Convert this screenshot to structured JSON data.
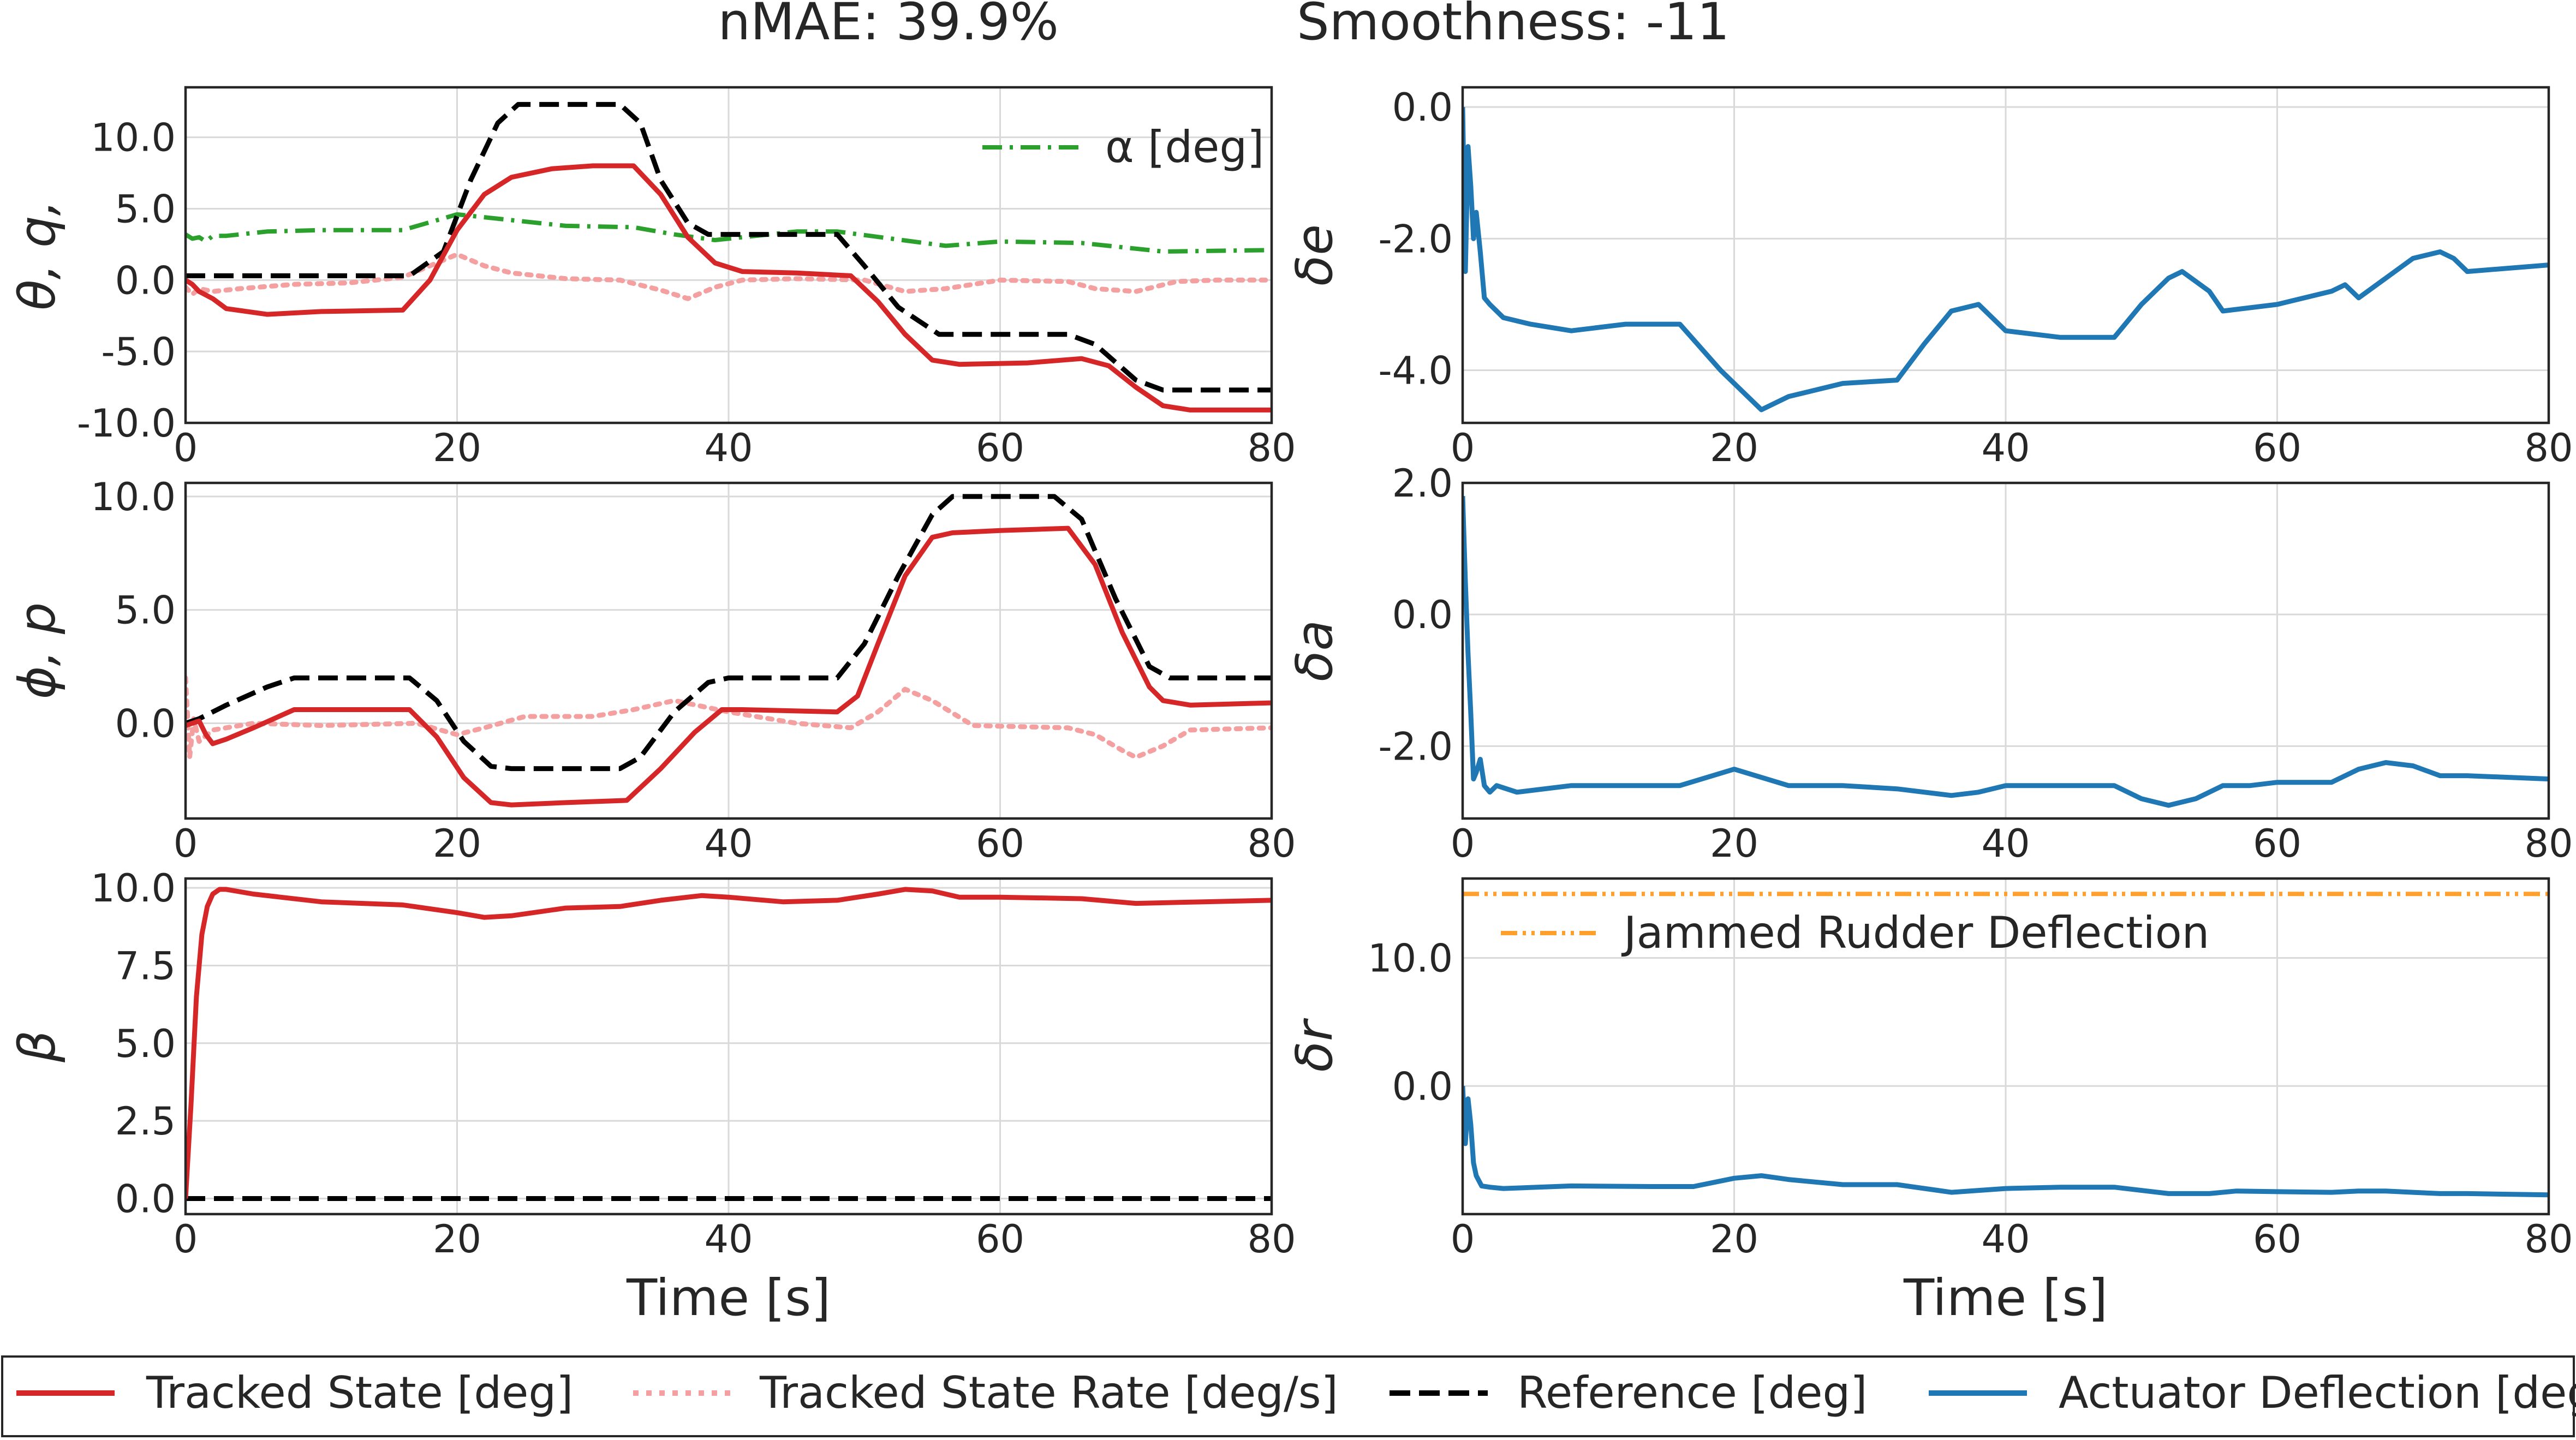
{
  "title": {
    "nmae": "nMAE: 39.9%",
    "smoothness": "Smoothness: -11"
  },
  "colors": {
    "tracked": "#d62728",
    "rate": "#f4a0a0",
    "reference": "#000000",
    "actuator": "#1f77b4",
    "alpha": "#2ca02c",
    "jammed": "#ff9f2e",
    "grid": "#d9d9d9"
  },
  "legend": {
    "items": [
      {
        "label": "Tracked State [deg]",
        "style": "solid",
        "color": "#d62728"
      },
      {
        "label": "Tracked State Rate [deg/s]",
        "style": "dotted",
        "color": "#f4a0a0"
      },
      {
        "label": "Reference [deg]",
        "style": "dashed",
        "color": "#000000"
      },
      {
        "label": "Actuator Deflection [deg]",
        "style": "solid",
        "color": "#1f77b4"
      }
    ]
  },
  "chart_data": [
    {
      "type": "line",
      "id": "theta",
      "ylabel": "θ, q,",
      "xlim": [
        0,
        80
      ],
      "ylim": [
        -10,
        13.5
      ],
      "xticks": [
        0,
        20,
        40,
        60,
        80
      ],
      "yticks": [
        -10,
        -5,
        0,
        5,
        10
      ],
      "ytick_labels": [
        "-10.0",
        "-5.0",
        "0.0",
        "5.0",
        "10.0"
      ],
      "legend_position": "top-right",
      "legend": [
        {
          "label": "α [deg]",
          "style": "dashdot",
          "color": "#2ca02c"
        }
      ],
      "series": [
        {
          "name": "α [deg]",
          "style": "dashdot",
          "color": "#2ca02c",
          "x": [
            0,
            0.5,
            1,
            1.5,
            2,
            3,
            6,
            10,
            16,
            20,
            24,
            28,
            33,
            36,
            39,
            42,
            45,
            48,
            52,
            56,
            60,
            66,
            72,
            80
          ],
          "y": [
            3.2,
            2.9,
            3.0,
            2.7,
            3.1,
            3.1,
            3.4,
            3.5,
            3.5,
            4.6,
            4.2,
            3.8,
            3.7,
            3.2,
            2.8,
            3.1,
            3.4,
            3.4,
            2.9,
            2.4,
            2.7,
            2.6,
            2.0,
            2.1
          ]
        },
        {
          "name": "Tracked State Rate [deg/s]",
          "style": "dotted",
          "color": "#f4a0a0",
          "x": [
            0,
            0.5,
            1,
            2,
            4,
            8,
            12,
            16,
            18,
            20,
            22,
            24,
            28,
            32,
            35,
            37,
            39,
            41,
            45,
            50,
            53,
            56,
            60,
            65,
            67,
            70,
            73,
            76,
            80
          ],
          "y": [
            -0.5,
            -1.0,
            -0.6,
            -0.8,
            -0.6,
            -0.3,
            -0.2,
            0.2,
            1.0,
            1.8,
            1.0,
            0.5,
            0.1,
            0.0,
            -0.7,
            -1.3,
            -0.5,
            0.0,
            0.1,
            0.0,
            -0.8,
            -0.6,
            0.0,
            -0.1,
            -0.6,
            -0.8,
            -0.1,
            0.0,
            0.0
          ]
        },
        {
          "name": "Reference [deg]",
          "style": "dashed",
          "color": "#000000",
          "x": [
            0,
            16.5,
            19,
            21,
            23,
            24.5,
            32,
            33.5,
            35,
            37,
            38.5,
            40,
            48,
            50,
            52.5,
            55.5,
            65,
            67,
            70,
            72,
            80
          ],
          "y": [
            0.3,
            0.3,
            2.0,
            7.0,
            11.0,
            12.3,
            12.3,
            11.0,
            7.0,
            4.0,
            3.2,
            3.2,
            3.2,
            1.0,
            -1.9,
            -3.8,
            -3.8,
            -4.5,
            -7.0,
            -7.7,
            -7.7
          ]
        },
        {
          "name": "Tracked State [deg]",
          "style": "solid",
          "color": "#d62728",
          "x": [
            0,
            0.5,
            1,
            2,
            3,
            6,
            10,
            16,
            18,
            20,
            22,
            24,
            27,
            30,
            33,
            35,
            37,
            39,
            41,
            45,
            49,
            51,
            53,
            55,
            57,
            62,
            66,
            68,
            70,
            72,
            74,
            80
          ],
          "y": [
            0.0,
            -0.3,
            -0.8,
            -1.3,
            -2.0,
            -2.4,
            -2.2,
            -2.1,
            0.0,
            3.5,
            6.0,
            7.2,
            7.8,
            8.0,
            8.0,
            6.0,
            3.0,
            1.2,
            0.6,
            0.5,
            0.3,
            -1.5,
            -3.8,
            -5.6,
            -5.9,
            -5.8,
            -5.5,
            -6.0,
            -7.5,
            -8.8,
            -9.1,
            -9.1
          ]
        }
      ]
    },
    {
      "type": "line",
      "id": "delta_e",
      "ylabel": "δe",
      "xlim": [
        0,
        80
      ],
      "ylim": [
        -4.8,
        0.3
      ],
      "xticks": [
        0,
        20,
        40,
        60,
        80
      ],
      "yticks": [
        -4,
        -2,
        0
      ],
      "ytick_labels": [
        "-4.0",
        "-2.0",
        "0.0"
      ],
      "series": [
        {
          "name": "Actuator Deflection [deg]",
          "style": "solid",
          "color": "#1f77b4",
          "x": [
            0,
            0.2,
            0.4,
            0.6,
            0.8,
            1.0,
            1.3,
            1.6,
            2.0,
            3.0,
            5,
            8,
            12,
            16,
            19,
            22,
            24,
            28,
            32,
            34,
            36,
            38,
            40,
            44,
            48,
            50,
            52,
            53,
            55,
            56,
            60,
            64,
            65,
            66,
            68,
            70,
            72,
            73,
            74,
            80
          ],
          "y": [
            0.0,
            -2.5,
            -0.6,
            -1.2,
            -2.0,
            -1.6,
            -2.2,
            -2.9,
            -3.0,
            -3.2,
            -3.3,
            -3.4,
            -3.3,
            -3.3,
            -4.0,
            -4.6,
            -4.4,
            -4.2,
            -4.15,
            -3.6,
            -3.1,
            -3.0,
            -3.4,
            -3.5,
            -3.5,
            -3.0,
            -2.6,
            -2.5,
            -2.8,
            -3.1,
            -3.0,
            -2.8,
            -2.7,
            -2.9,
            -2.6,
            -2.3,
            -2.2,
            -2.3,
            -2.5,
            -2.4
          ]
        }
      ]
    },
    {
      "type": "line",
      "id": "phi",
      "ylabel": "ϕ, p",
      "xlim": [
        0,
        80
      ],
      "ylim": [
        -4.2,
        10.6
      ],
      "xticks": [
        0,
        20,
        40,
        60,
        80
      ],
      "yticks": [
        0,
        5,
        10
      ],
      "ytick_labels": [
        "0.0",
        "5.0",
        "10.0"
      ],
      "series": [
        {
          "name": "Tracked State Rate [deg/s]",
          "style": "dotted",
          "color": "#f4a0a0",
          "x": [
            0,
            0.3,
            0.6,
            1,
            2,
            5,
            10,
            17,
            20,
            22,
            25,
            30,
            33,
            36,
            40,
            45,
            49,
            51,
            53,
            55,
            58,
            65,
            67,
            69,
            70,
            72,
            74,
            80
          ],
          "y": [
            2.0,
            -1.5,
            0.2,
            -0.8,
            -0.3,
            0.0,
            -0.1,
            0.0,
            -0.5,
            -0.2,
            0.3,
            0.3,
            0.6,
            1.0,
            0.5,
            0.0,
            -0.2,
            0.5,
            1.5,
            1.0,
            -0.1,
            -0.2,
            -0.5,
            -1.2,
            -1.5,
            -1.0,
            -0.3,
            -0.2
          ]
        },
        {
          "name": "Reference [deg]",
          "style": "dashed",
          "color": "#000000",
          "x": [
            0,
            1,
            3,
            6,
            8,
            16.5,
            18.5,
            20.5,
            22.5,
            24,
            32,
            33.5,
            36,
            38.5,
            40,
            48,
            50,
            52.5,
            55,
            56.5,
            64,
            66,
            68.5,
            71,
            72.5,
            80
          ],
          "y": [
            0.0,
            0.2,
            0.8,
            1.6,
            2.0,
            2.0,
            1.0,
            -0.8,
            -1.9,
            -2.0,
            -2.0,
            -1.5,
            0.5,
            1.8,
            2.0,
            2.0,
            3.5,
            6.5,
            9.2,
            10.0,
            10.0,
            9.0,
            5.5,
            2.5,
            2.0,
            2.0
          ]
        },
        {
          "name": "Tracked State [deg]",
          "style": "solid",
          "color": "#d62728",
          "x": [
            0,
            1,
            1.5,
            2,
            3,
            5,
            8,
            16.5,
            18.5,
            20.5,
            22.5,
            24,
            28,
            32.5,
            35,
            37.5,
            39.5,
            41,
            48,
            49.5,
            51,
            53,
            55,
            56.5,
            60,
            65,
            67,
            69,
            71,
            72,
            74,
            80
          ],
          "y": [
            -0.1,
            0.1,
            -0.5,
            -0.9,
            -0.7,
            -0.2,
            0.6,
            0.6,
            -0.6,
            -2.4,
            -3.5,
            -3.6,
            -3.5,
            -3.4,
            -2.0,
            -0.4,
            0.6,
            0.6,
            0.5,
            1.2,
            3.5,
            6.5,
            8.2,
            8.4,
            8.5,
            8.6,
            7.0,
            4.0,
            1.6,
            1.0,
            0.8,
            0.9
          ]
        }
      ]
    },
    {
      "type": "line",
      "id": "delta_a",
      "ylabel": "δa",
      "xlim": [
        0,
        80
      ],
      "ylim": [
        -3.1,
        2.0
      ],
      "xticks": [
        0,
        20,
        40,
        60,
        80
      ],
      "yticks": [
        -2,
        0,
        2
      ],
      "ytick_labels": [
        "-2.0",
        "0.0",
        "2.0"
      ],
      "series": [
        {
          "name": "Actuator Deflection [deg]",
          "style": "solid",
          "color": "#1f77b4",
          "x": [
            0,
            0.2,
            0.4,
            0.6,
            0.8,
            1.0,
            1.3,
            1.6,
            2.0,
            2.5,
            4,
            8,
            12,
            16,
            20,
            24,
            28,
            32,
            36,
            38,
            40,
            44,
            48,
            50,
            52,
            54,
            56,
            58,
            60,
            64,
            66,
            68,
            70,
            72,
            74,
            80
          ],
          "y": [
            1.8,
            0.5,
            -0.6,
            -1.5,
            -2.5,
            -2.4,
            -2.2,
            -2.6,
            -2.7,
            -2.6,
            -2.7,
            -2.6,
            -2.6,
            -2.6,
            -2.35,
            -2.6,
            -2.6,
            -2.65,
            -2.75,
            -2.7,
            -2.6,
            -2.6,
            -2.6,
            -2.8,
            -2.9,
            -2.8,
            -2.6,
            -2.6,
            -2.55,
            -2.55,
            -2.35,
            -2.25,
            -2.3,
            -2.45,
            -2.45,
            -2.5
          ]
        }
      ]
    },
    {
      "type": "line",
      "id": "beta",
      "ylabel": "β",
      "xlim": [
        0,
        80
      ],
      "ylim": [
        -0.5,
        10.3
      ],
      "xticks": [
        0,
        20,
        40,
        60,
        80
      ],
      "yticks": [
        0,
        2.5,
        5,
        7.5,
        10
      ],
      "ytick_labels": [
        "0.0",
        "2.5",
        "5.0",
        "7.5",
        "10.0"
      ],
      "xlabel": "Time [s]",
      "series": [
        {
          "name": "Reference [deg]",
          "style": "dashed",
          "color": "#000000",
          "x": [
            0,
            80
          ],
          "y": [
            0.0,
            0.0
          ]
        },
        {
          "name": "Tracked State [deg]",
          "style": "solid",
          "color": "#d62728",
          "x": [
            0,
            0.4,
            0.8,
            1.2,
            1.6,
            2.0,
            2.5,
            3,
            5,
            10,
            16,
            20,
            22,
            24,
            28,
            32,
            35,
            38,
            40,
            44,
            48,
            51,
            53,
            55,
            57,
            60,
            66,
            70,
            75,
            80
          ],
          "y": [
            0.0,
            3.0,
            6.5,
            8.5,
            9.4,
            9.8,
            9.95,
            9.95,
            9.8,
            9.55,
            9.45,
            9.2,
            9.05,
            9.1,
            9.35,
            9.4,
            9.6,
            9.75,
            9.7,
            9.55,
            9.6,
            9.8,
            9.95,
            9.9,
            9.7,
            9.7,
            9.65,
            9.5,
            9.55,
            9.6
          ]
        }
      ]
    },
    {
      "type": "line",
      "id": "delta_r",
      "ylabel": "δr",
      "xlim": [
        0,
        80
      ],
      "ylim": [
        -10,
        16.2
      ],
      "xticks": [
        0,
        20,
        40,
        60,
        80
      ],
      "yticks": [
        0,
        10
      ],
      "ytick_labels": [
        "0.0",
        "10.0"
      ],
      "xlabel": "Time [s]",
      "legend_position": "upper-left",
      "legend": [
        {
          "label": "Jammed Rudder Deflection",
          "style": "dashdotdot",
          "color": "#ff9f2e"
        }
      ],
      "series": [
        {
          "name": "Jammed Rudder Deflection",
          "style": "dashdotdot",
          "color": "#ff9f2e",
          "x": [
            0,
            80
          ],
          "y": [
            15.0,
            15.0
          ]
        },
        {
          "name": "Actuator Deflection [deg]",
          "style": "solid",
          "color": "#1f77b4",
          "x": [
            0,
            0.2,
            0.4,
            0.6,
            0.8,
            1.0,
            1.4,
            2.0,
            3.0,
            8,
            14,
            17,
            20,
            22,
            24,
            28,
            32,
            36,
            40,
            44,
            48,
            52,
            55,
            57,
            60,
            64,
            66,
            68,
            70,
            72,
            74,
            80
          ],
          "y": [
            0.0,
            -4.5,
            -1.0,
            -3.0,
            -6.0,
            -7.0,
            -7.8,
            -7.9,
            -8.0,
            -7.8,
            -7.85,
            -7.85,
            -7.2,
            -7.0,
            -7.3,
            -7.7,
            -7.7,
            -8.3,
            -8.0,
            -7.9,
            -7.9,
            -8.4,
            -8.4,
            -8.2,
            -8.25,
            -8.3,
            -8.2,
            -8.2,
            -8.3,
            -8.4,
            -8.4,
            -8.5
          ]
        }
      ]
    }
  ]
}
